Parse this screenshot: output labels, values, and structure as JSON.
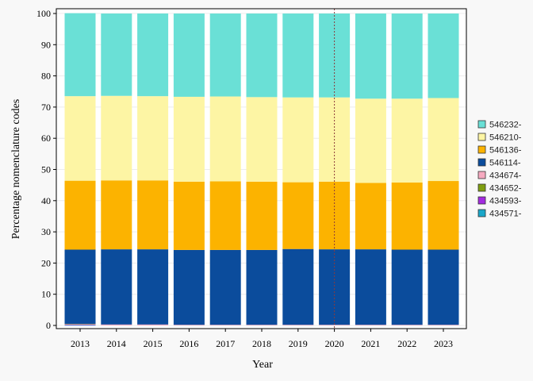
{
  "chart_data": {
    "type": "bar",
    "stacked": true,
    "title": "",
    "xlabel": "Year",
    "ylabel": "Percentage nomenclature codes",
    "ylim": [
      0,
      100
    ],
    "yticks": [
      0,
      10,
      20,
      30,
      40,
      50,
      60,
      70,
      80,
      90,
      100
    ],
    "categories": [
      "2013",
      "2014",
      "2015",
      "2016",
      "2017",
      "2018",
      "2019",
      "2020",
      "2021",
      "2022",
      "2023"
    ],
    "reference_line": {
      "x": "2020",
      "style": "dotted",
      "color": "#8b3a3a"
    },
    "legend_position": "right",
    "series": [
      {
        "name": "434571-",
        "color": "#1aa7c9",
        "values": [
          0.1,
          0,
          0,
          0,
          0,
          0,
          0,
          0,
          0,
          0,
          0
        ]
      },
      {
        "name": "434593-",
        "color": "#a32be0",
        "values": [
          0.2,
          0,
          0,
          0,
          0,
          0,
          0,
          0,
          0,
          0,
          0
        ]
      },
      {
        "name": "434652-",
        "color": "#7f9e10",
        "values": [
          0.1,
          0,
          0,
          0,
          0,
          0,
          0,
          0,
          0,
          0,
          0
        ]
      },
      {
        "name": "434674-",
        "color": "#f6aac0",
        "values": [
          0.1,
          0.3,
          0.3,
          0.2,
          0.2,
          0.2,
          0.2,
          0.2,
          0.2,
          0.2,
          0.2
        ]
      },
      {
        "name": "546114-",
        "color": "#0b4c9c",
        "values": [
          23.8,
          24.1,
          24.1,
          24.0,
          24.0,
          24.0,
          24.3,
          24.2,
          24.2,
          24.1,
          24.1
        ]
      },
      {
        "name": "546136-",
        "color": "#fcb300",
        "values": [
          22.1,
          22.1,
          22.1,
          21.9,
          22.0,
          21.9,
          21.4,
          21.7,
          21.3,
          21.5,
          22.0
        ]
      },
      {
        "name": "546210-",
        "color": "#fdf5a4",
        "values": [
          27.1,
          27.1,
          27.0,
          27.2,
          27.2,
          27.1,
          27.2,
          27.0,
          27.0,
          26.9,
          26.6
        ]
      },
      {
        "name": "546232-",
        "color": "#6ae0d6",
        "values": [
          26.6,
          26.4,
          26.5,
          26.7,
          26.6,
          26.8,
          26.9,
          26.9,
          27.3,
          27.3,
          27.1
        ]
      }
    ]
  }
}
